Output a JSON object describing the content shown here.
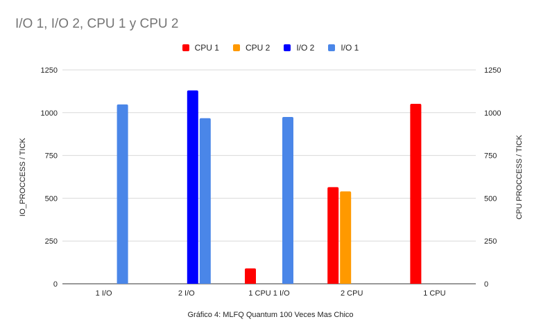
{
  "chart_data": {
    "type": "bar",
    "title": "I/O 1, I/O 2, CPU 1 y CPU 2",
    "subtitle_caption": "Gráfico 4: MLFQ Quantum 100 Veces Mas Chico",
    "ylabel_left": "IO_PROCCESS / TICK",
    "ylabel_right": "CPU PROCCESS / TICK",
    "ylim": [
      0,
      1250
    ],
    "yticks": [
      "0",
      "250",
      "500",
      "750",
      "1000",
      "1250"
    ],
    "grid": true,
    "legend_position": "top",
    "categories": [
      "1 I/O",
      "2 I/O",
      "1 CPU 1 I/O",
      "2 CPU",
      "1 CPU"
    ],
    "series": [
      {
        "name": "CPU 1",
        "color": "#ff0000",
        "axis": "right",
        "values": [
          null,
          null,
          90,
          565,
          1052
        ]
      },
      {
        "name": "CPU 2",
        "color": "#ff9900",
        "axis": "right",
        "values": [
          null,
          null,
          null,
          540,
          null
        ]
      },
      {
        "name": "I/O 2",
        "color": "#0000ff",
        "axis": "left",
        "values": [
          null,
          1130,
          null,
          null,
          null
        ]
      },
      {
        "name": "I/O 1",
        "color": "#4a86e8",
        "axis": "left",
        "values": [
          1048,
          968,
          975,
          null,
          null
        ]
      }
    ]
  }
}
